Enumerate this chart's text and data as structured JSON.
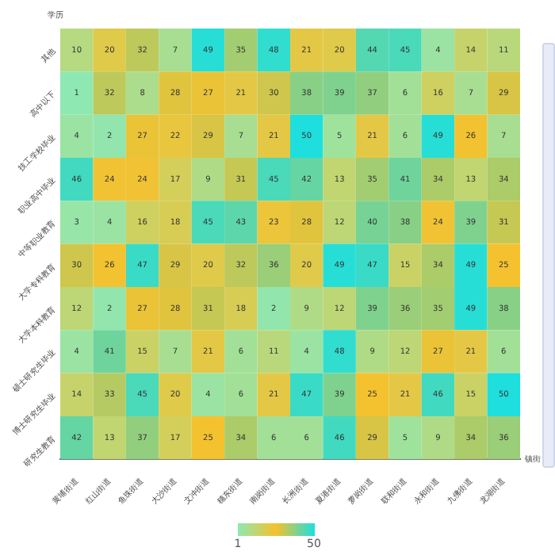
{
  "chart_data": {
    "type": "heatmap",
    "xlabel": "镇街",
    "ylabel": "学历",
    "categories": [
      "黄埔街道",
      "红山街道",
      "鱼珠街道",
      "大沙街道",
      "文冲街道",
      "穗东街道",
      "南岗街道",
      "长洲街道",
      "夏港街道",
      "萝岗街道",
      "联和街道",
      "永和街道",
      "九佛街道",
      "龙湖街道"
    ],
    "y_categories": [
      "其他",
      "高中以下",
      "技工学校毕业",
      "职业高中毕业",
      "中等职业教育",
      "大学专科教育",
      "大学本科教育",
      "硕士研究生毕业",
      "博士研究生毕业",
      "研究生教育"
    ],
    "cells": [
      [
        10,
        20,
        32,
        7,
        49,
        35,
        48,
        21,
        20,
        44,
        45,
        4,
        14,
        11
      ],
      [
        1,
        32,
        8,
        28,
        27,
        21,
        30,
        38,
        39,
        37,
        6,
        16,
        7,
        29
      ],
      [
        4,
        2,
        27,
        22,
        29,
        7,
        21,
        50,
        5,
        21,
        6,
        49,
        26,
        7
      ],
      [
        46,
        24,
        24,
        17,
        9,
        31,
        45,
        42,
        13,
        35,
        41,
        34,
        13,
        34
      ],
      [
        3,
        4,
        16,
        18,
        45,
        43,
        23,
        28,
        12,
        40,
        38,
        24,
        39,
        31
      ],
      [
        30,
        26,
        47,
        29,
        20,
        32,
        36,
        20,
        49,
        47,
        15,
        34,
        49,
        25
      ],
      [
        12,
        2,
        27,
        28,
        31,
        18,
        2,
        9,
        12,
        39,
        36,
        35,
        49,
        38
      ],
      [
        4,
        41,
        15,
        7,
        21,
        6,
        11,
        4,
        48,
        9,
        12,
        27,
        21,
        6
      ],
      [
        14,
        33,
        45,
        20,
        4,
        6,
        21,
        47,
        39,
        25,
        21,
        46,
        15,
        50
      ],
      [
        42,
        13,
        37,
        17,
        25,
        34,
        6,
        6,
        46,
        29,
        5,
        9,
        34,
        36
      ]
    ],
    "clim": [
      1,
      50
    ],
    "cticks": [
      1,
      50
    ],
    "colors": [
      "#8ee8b2",
      "#f7c12c",
      "#1edfdd"
    ],
    "data_labels": true
  }
}
